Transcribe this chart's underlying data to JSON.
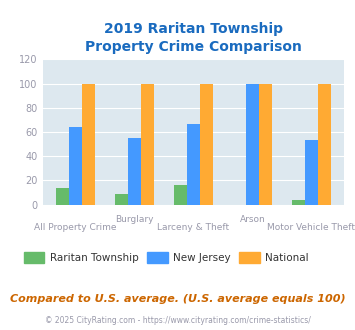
{
  "title": "2019 Raritan Township\nProperty Crime Comparison",
  "raritan": [
    14,
    9,
    16,
    0,
    4
  ],
  "new_jersey": [
    64,
    55,
    67,
    100,
    53
  ],
  "national": [
    100,
    100,
    100,
    100,
    100
  ],
  "bar_colors": {
    "raritan": "#66bb6a",
    "new_jersey": "#4499ff",
    "national": "#ffaa33"
  },
  "ylim": [
    0,
    120
  ],
  "yticks": [
    0,
    20,
    40,
    60,
    80,
    100,
    120
  ],
  "legend_labels": [
    "Raritan Township",
    "New Jersey",
    "National"
  ],
  "footer_note": "Compared to U.S. average. (U.S. average equals 100)",
  "copyright": "© 2025 CityRating.com - https://www.cityrating.com/crime-statistics/",
  "title_color": "#1a6bbf",
  "axis_color": "#9999aa",
  "bg_color": "#dde8ef",
  "fig_bg": "#ffffff",
  "footer_color": "#cc6600",
  "copyright_color": "#9999aa"
}
